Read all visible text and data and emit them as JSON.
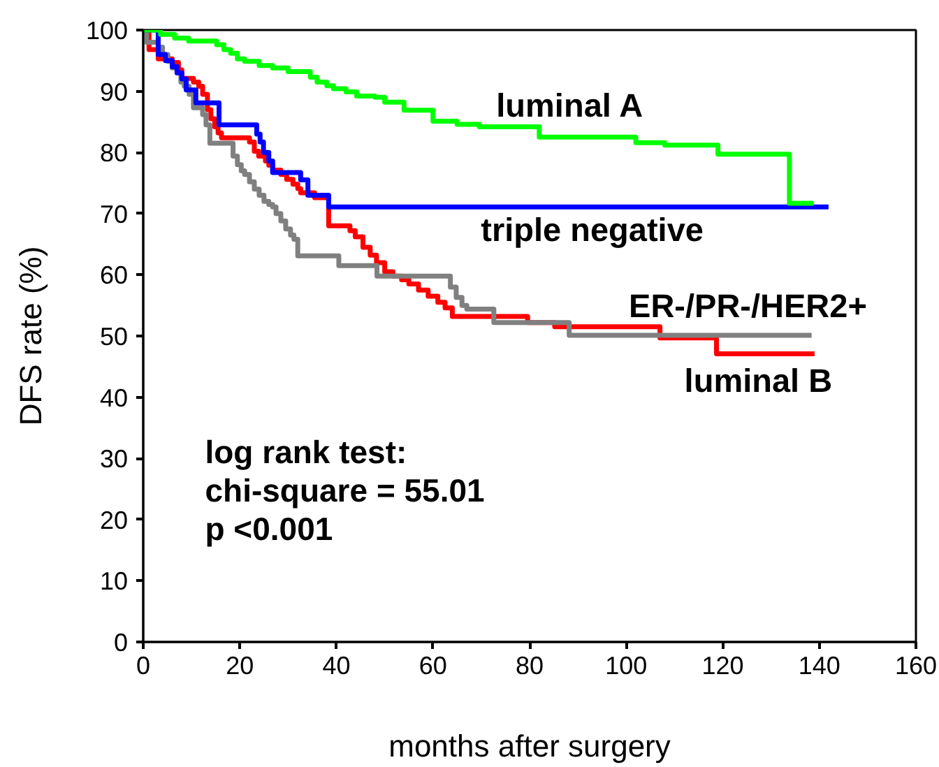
{
  "chart_data": {
    "type": "step",
    "xlabel": "months after surgery",
    "ylabel": "DFS rate (%)",
    "xlim": [
      0,
      160
    ],
    "xticks": [
      0,
      20,
      40,
      60,
      80,
      100,
      120,
      140,
      160
    ],
    "ylim": [
      0,
      100
    ],
    "yticks": [
      0,
      10,
      20,
      30,
      40,
      50,
      60,
      70,
      80,
      90,
      100
    ],
    "grid": false,
    "legend": false,
    "series": [
      {
        "name": "luminal A",
        "color": "#00ff00",
        "x": [
          0,
          3.6,
          6.5,
          9.4,
          15.2,
          16.7,
          18.1,
          19.5,
          21,
          24,
          26.8,
          30,
          34.6,
          36,
          38,
          39.4,
          42,
          44.2,
          48,
          50,
          54,
          60,
          65,
          69.6,
          82,
          102,
          108,
          119,
          133.8,
          138.8
        ],
        "values": [
          100,
          99.3,
          98.7,
          98.2,
          97.6,
          96.8,
          96.2,
          95.3,
          94.9,
          94.2,
          93.8,
          93.2,
          92.3,
          91.5,
          90.9,
          90.4,
          89.9,
          89.2,
          89,
          88.2,
          86.9,
          85.1,
          84.6,
          84.2,
          82.5,
          81.6,
          81.2,
          79.7,
          71.7,
          71.7
        ]
      },
      {
        "name": "triple negative",
        "color": "#0000ff",
        "x": [
          0,
          3.1,
          4.6,
          6,
          7,
          8,
          8.9,
          10.9,
          15.7,
          23.5,
          24.2,
          24.9,
          26,
          26.8,
          32.6,
          34.1,
          38.4,
          141.9
        ],
        "values": [
          100,
          96,
          95,
          94,
          93,
          92,
          90.2,
          88.1,
          84.5,
          83,
          81.7,
          80,
          78.6,
          76.7,
          75.5,
          73,
          71.1,
          71.1
        ]
      },
      {
        "name": "ER-/PR-/HER2+",
        "color": "#808080",
        "x": [
          0,
          0.7,
          3.1,
          4,
          5.1,
          6,
          7,
          7.8,
          8.5,
          9.5,
          10.4,
          12.3,
          13,
          13.8,
          18.6,
          19.5,
          20.3,
          21,
          22,
          23,
          24,
          25,
          26,
          26.8,
          27.5,
          28.5,
          29.5,
          30.5,
          31.2,
          32,
          40.5,
          48.4,
          63.6,
          64.8,
          66,
          67,
          72.6,
          88.2,
          138.4
        ],
        "values": [
          100,
          98,
          97.2,
          96,
          94.9,
          93.8,
          93,
          91.5,
          90.8,
          89.5,
          87.3,
          86.2,
          84.5,
          81.5,
          79.4,
          78,
          77,
          76.4,
          75.2,
          74,
          73,
          72,
          71.5,
          71.1,
          70,
          68.8,
          67.5,
          66.5,
          65.8,
          63.1,
          61.5,
          59.8,
          58,
          56.3,
          55,
          54.4,
          52.2,
          50.1,
          50.1
        ]
      },
      {
        "name": "luminal B",
        "color": "#ff0000",
        "x": [
          0,
          1.2,
          3.1,
          6,
          7.3,
          8,
          10.4,
          11.5,
          12.3,
          13.3,
          14,
          14.8,
          15.5,
          16.2,
          22,
          23,
          23.9,
          25.3,
          26,
          26.8,
          28.5,
          29.7,
          31,
          32,
          32.6,
          35.5,
          38.4,
          42.8,
          43.9,
          45.5,
          47,
          48.3,
          50,
          51.7,
          53.5,
          55,
          57,
          59,
          61,
          62.5,
          64,
          79.6,
          85.2,
          107,
          118.7,
          139
        ],
        "values": [
          100,
          96.8,
          95.3,
          94.7,
          93.5,
          92.1,
          91.5,
          90.8,
          89.5,
          87,
          85.5,
          84.2,
          83.2,
          82.4,
          81.7,
          80.2,
          79.4,
          78.6,
          77.9,
          77.1,
          76.4,
          75.6,
          74.8,
          74.1,
          73.4,
          72.6,
          68,
          67.2,
          66.2,
          64.5,
          63.2,
          62,
          60.5,
          59.8,
          59.2,
          58.5,
          57.5,
          56.5,
          55.5,
          54.6,
          53.2,
          52.2,
          51.5,
          49.7,
          47.1,
          47.1
        ]
      }
    ],
    "annotations": [
      "log rank test:",
      "chi-square = 55.01",
      "p <0.001"
    ]
  }
}
